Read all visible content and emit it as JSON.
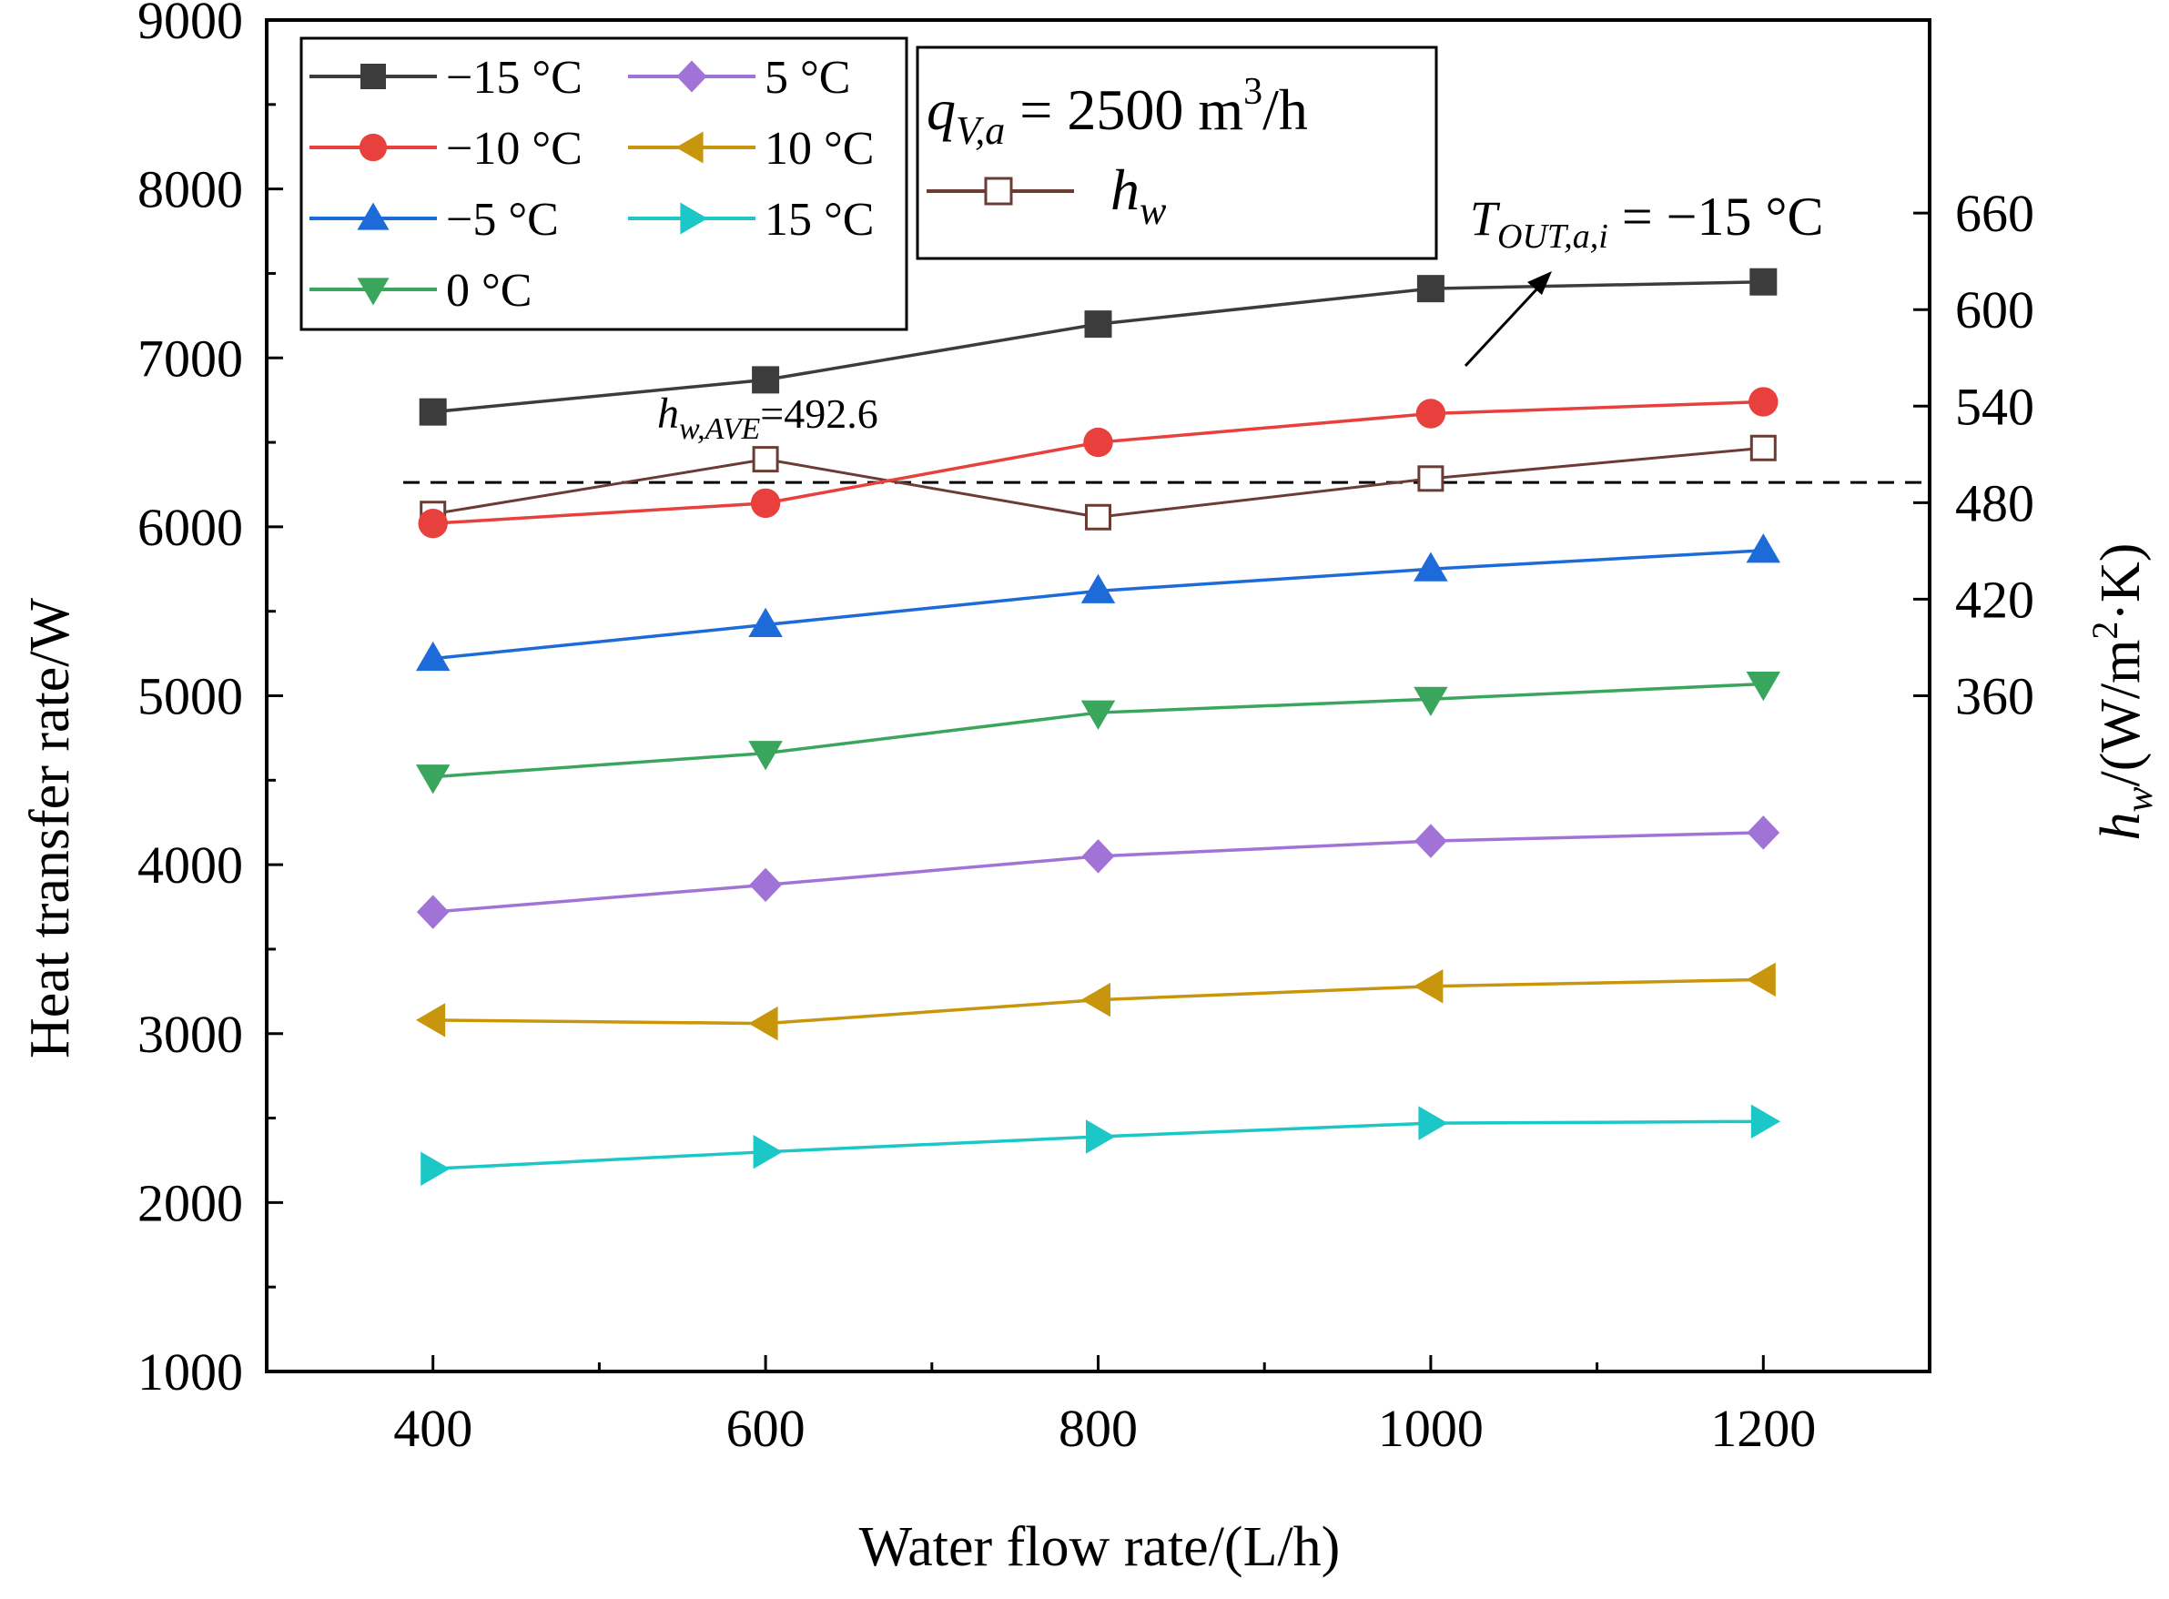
{
  "chart_data": {
    "type": "line",
    "x": [
      400,
      600,
      800,
      1000,
      1200
    ],
    "xlabel": "Water flow rate/(L/h)",
    "xlim": [
      300,
      1300
    ],
    "xticks": [
      "400",
      "600",
      "800",
      "1000",
      "1200"
    ],
    "ylabel": "Heat transfer rate/W",
    "ylim": [
      1000,
      9000
    ],
    "yticks": [
      "1000",
      "2000",
      "3000",
      "4000",
      "5000",
      "6000",
      "7000",
      "8000",
      "9000"
    ],
    "y2label_main": "h",
    "y2label_sub": "w",
    "y2label_rest": "/(W/m",
    "y2label_sup": "2",
    "y2label_tail": "·K)",
    "y2lim": [
      -60,
      780
    ],
    "y2ticks": [
      "360",
      "420",
      "480",
      "540",
      "600",
      "660"
    ],
    "series": [
      {
        "name": "−15 °C",
        "marker": "square",
        "color": "#3c3c3c",
        "values": [
          6680,
          6870,
          7200,
          7410,
          7450
        ]
      },
      {
        "name": "−10 °C",
        "marker": "circle",
        "color": "#e8403c",
        "values": [
          6020,
          6140,
          6500,
          6670,
          6740
        ]
      },
      {
        "name": "−5 °C",
        "marker": "triangle-up",
        "color": "#1d6bd8",
        "values": [
          5220,
          5420,
          5620,
          5750,
          5860
        ]
      },
      {
        "name": " 0 °C",
        "marker": "triangle-down",
        "color": "#3aa55c",
        "values": [
          4520,
          4660,
          4900,
          4980,
          5070
        ]
      },
      {
        "name": " 5 °C",
        "marker": "diamond",
        "color": "#a273d6",
        "values": [
          3720,
          3880,
          4050,
          4140,
          4190
        ]
      },
      {
        "name": "10 °C",
        "marker": "triangle-left",
        "color": "#c8960c",
        "values": [
          3080,
          3060,
          3200,
          3280,
          3320
        ]
      },
      {
        "name": "15 °C",
        "marker": "triangle-right",
        "color": "#1bc7c7",
        "values": [
          2200,
          2300,
          2390,
          2470,
          2480
        ]
      }
    ],
    "hw_series": {
      "name": "h",
      "name_sub": "w",
      "marker": "open-square",
      "color": "#6b3c34",
      "values": [
        473,
        507,
        471,
        495,
        514
      ]
    },
    "hw_ave": {
      "value": 492.6,
      "label_main": "h",
      "label_sub": "w,AVE",
      "label_value": "=492.6"
    },
    "condition": {
      "main": "q",
      "sub": "V,a",
      "rest": " = 2500 m",
      "sup": "3",
      "tail": "/h"
    },
    "annotation": {
      "main": "T",
      "sub": "OUT,a,i",
      "rest": " = −15 °C"
    }
  }
}
